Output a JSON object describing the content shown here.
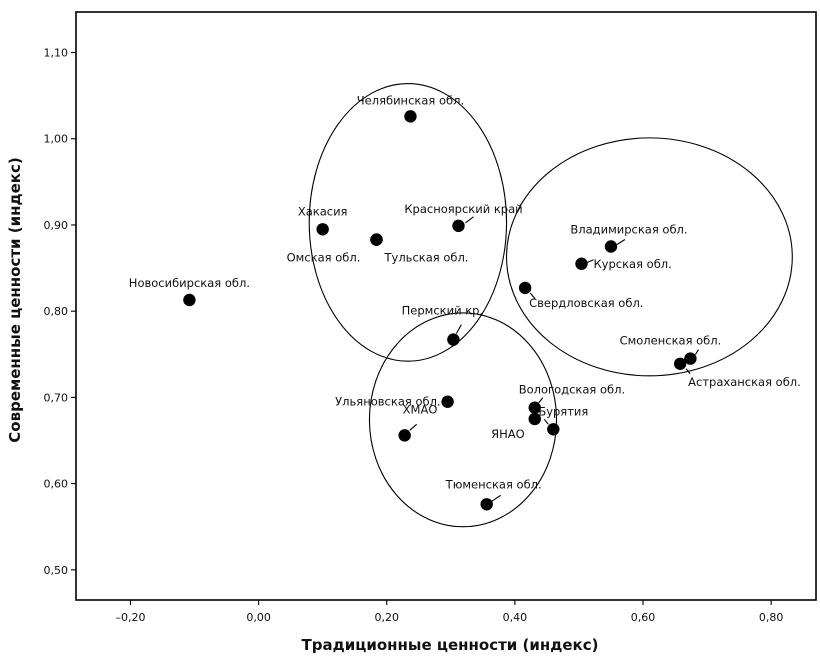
{
  "chart_data": {
    "type": "scatter",
    "title": "",
    "xlabel": "Традиционные ценности (индекс)",
    "ylabel": "Современные ценности (индекс)",
    "xlim": [
      -0.285,
      0.87
    ],
    "ylim": [
      0.465,
      1.147
    ],
    "x_ticks": [
      -0.2,
      0.0,
      0.2,
      0.4,
      0.6,
      0.8
    ],
    "x_tick_labels": [
      "–0,20",
      "0,00",
      "0,20",
      "0,40",
      "0,60",
      "0,80"
    ],
    "y_ticks": [
      0.5,
      0.6,
      0.7,
      0.8,
      0.9,
      1.0,
      1.1
    ],
    "y_tick_labels": [
      "0,50",
      "0,60",
      "0,70",
      "0,80",
      "0,90",
      "1,00",
      "1,10"
    ],
    "grid": false,
    "legend": "none",
    "points": [
      {
        "label": "Челябинская обл.",
        "x": 0.237,
        "y": 1.026
      },
      {
        "label": "Хакасия",
        "x": 0.1,
        "y": 0.895
      },
      {
        "label": "Омская обл.",
        "x": 0.184,
        "y": 0.883
      },
      {
        "label": "Тульская обл.",
        "x": 0.184,
        "y": 0.883
      },
      {
        "label": "Красноярский край",
        "x": 0.312,
        "y": 0.899
      },
      {
        "label": "Новосибирская обл.",
        "x": -0.108,
        "y": 0.813
      },
      {
        "label": "Владимирская обл.",
        "x": 0.55,
        "y": 0.875
      },
      {
        "label": "Курская обл.",
        "x": 0.504,
        "y": 0.855
      },
      {
        "label": "Свердловская обл.",
        "x": 0.416,
        "y": 0.827
      },
      {
        "label": "Пермский кр.",
        "x": 0.304,
        "y": 0.767
      },
      {
        "label": "Смоленская обл.",
        "x": 0.674,
        "y": 0.745
      },
      {
        "label": "Астраханская обл.",
        "x": 0.658,
        "y": 0.739
      },
      {
        "label": "Ульяновская обл.",
        "x": 0.295,
        "y": 0.695
      },
      {
        "label": "Вологодская обл.",
        "x": 0.431,
        "y": 0.688
      },
      {
        "label": "Бурятия",
        "x": 0.46,
        "y": 0.663
      },
      {
        "label": "ЯНАО",
        "x": 0.431,
        "y": 0.675
      },
      {
        "label": "ХМАО",
        "x": 0.228,
        "y": 0.656
      },
      {
        "label": "Тюменская обл.",
        "x": 0.356,
        "y": 0.576
      }
    ],
    "clusters": [
      {
        "cx": 0.233,
        "cy": 0.903,
        "rx": 0.154,
        "ry": 0.161
      },
      {
        "cx": 0.319,
        "cy": 0.674,
        "rx": 0.146,
        "ry": 0.124
      },
      {
        "cx": 0.61,
        "cy": 0.863,
        "rx": 0.223,
        "ry": 0.138
      }
    ]
  }
}
